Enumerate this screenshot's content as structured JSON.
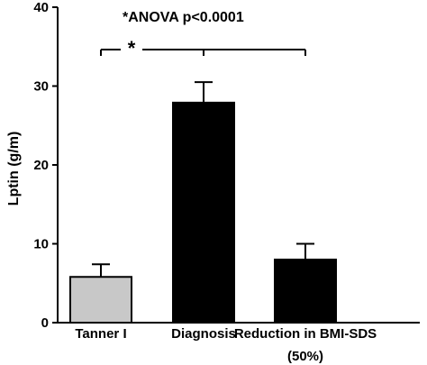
{
  "chart_data": {
    "type": "bar",
    "categories": [
      "Tanner I",
      "Diagnosis",
      "Reduction in BMI-SDS"
    ],
    "category_sublabels": [
      "",
      "",
      "(50%)"
    ],
    "values": [
      5.8,
      27.9,
      8.0
    ],
    "errors": [
      1.6,
      2.6,
      2.0
    ],
    "bar_colors": [
      "#c8c8c8",
      "#000000",
      "#000000"
    ],
    "ylabel": "Lptin (g/m)",
    "xlabel": "",
    "title": "",
    "ylim": [
      0,
      40
    ],
    "yticks": [
      0,
      10,
      20,
      30,
      40
    ],
    "annotation": "*ANOVA p<0.0001",
    "significance_marker": "*",
    "significance_between": [
      "Tanner I",
      "Reduction in BMI-SDS"
    ],
    "grid": false,
    "legend": "none"
  }
}
